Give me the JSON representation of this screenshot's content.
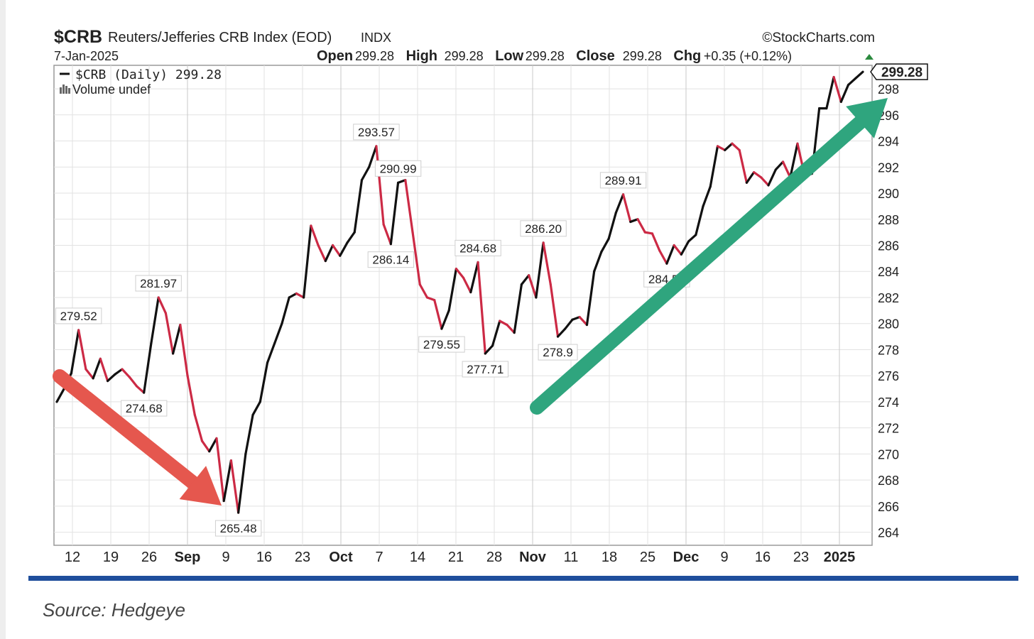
{
  "header": {
    "symbol": "$CRB",
    "name": "Reuters/Jefferies CRB Index (EOD)",
    "exchange": "INDX",
    "credit": "©StockCharts.com",
    "date": "7-Jan-2025",
    "ohlc": [
      {
        "label": "Open",
        "value": "299.28"
      },
      {
        "label": "High",
        "value": "299.28"
      },
      {
        "label": "Low",
        "value": "299.28"
      },
      {
        "label": "Close",
        "value": "299.28"
      },
      {
        "label": "Chg",
        "value": "+0.35 (+0.12%)"
      }
    ],
    "legend_series": "$CRB (Daily) 299.28",
    "legend_volume": "Volume undef"
  },
  "chart_data": {
    "type": "line",
    "x_tick_labels": [
      {
        "label": "12",
        "bold": false
      },
      {
        "label": "19",
        "bold": false
      },
      {
        "label": "26",
        "bold": false
      },
      {
        "label": "Sep",
        "bold": true
      },
      {
        "label": "9",
        "bold": false
      },
      {
        "label": "16",
        "bold": false
      },
      {
        "label": "23",
        "bold": false
      },
      {
        "label": "Oct",
        "bold": true
      },
      {
        "label": "7",
        "bold": false
      },
      {
        "label": "14",
        "bold": false
      },
      {
        "label": "21",
        "bold": false
      },
      {
        "label": "28",
        "bold": false
      },
      {
        "label": "Nov",
        "bold": true
      },
      {
        "label": "11",
        "bold": false
      },
      {
        "label": "18",
        "bold": false
      },
      {
        "label": "25",
        "bold": false
      },
      {
        "label": "Dec",
        "bold": true
      },
      {
        "label": "9",
        "bold": false
      },
      {
        "label": "16",
        "bold": false
      },
      {
        "label": "23",
        "bold": false
      },
      {
        "label": "2025",
        "bold": true
      }
    ],
    "y_ticks": [
      264,
      266,
      268,
      270,
      272,
      274,
      276,
      278,
      280,
      282,
      284,
      286,
      288,
      290,
      292,
      294,
      296,
      298
    ],
    "ylim": [
      263,
      299.8
    ],
    "last_value_label": "299.28",
    "series": [
      {
        "values": [
          274.0,
          275.0,
          276.2,
          279.5,
          276.5,
          275.8,
          277.3,
          275.6,
          276.1,
          276.5,
          275.9,
          275.2,
          274.7,
          278.5,
          282.0,
          280.8,
          277.7,
          279.9,
          276.0,
          273.0,
          271.0,
          270.2,
          271.2,
          266.4,
          269.5,
          265.5,
          270.0,
          273.0,
          274.0,
          277.0,
          278.5,
          280.0,
          282.0,
          282.3,
          282.0,
          287.5,
          286.0,
          284.8,
          286.0,
          285.2,
          286.2,
          287.0,
          291.0,
          292.0,
          293.6,
          287.6,
          286.1,
          290.8,
          291.0,
          287.0,
          283.0,
          282.0,
          281.8,
          279.6,
          281.0,
          284.2,
          283.5,
          282.4,
          284.7,
          277.7,
          278.3,
          280.2,
          279.9,
          279.3,
          283.0,
          283.7,
          282.0,
          286.2,
          283.0,
          279.0,
          279.6,
          280.3,
          280.5,
          279.9,
          284.0,
          285.5,
          286.5,
          288.5,
          289.9,
          287.8,
          288.0,
          287.0,
          286.9,
          285.6,
          284.6,
          286.0,
          285.3,
          286.3,
          286.8,
          289.0,
          290.5,
          293.6,
          293.3,
          293.8,
          293.3,
          290.8,
          291.6,
          291.2,
          290.6,
          291.8,
          292.4,
          291.2,
          293.8,
          291.3,
          291.5,
          296.5,
          296.5,
          298.9,
          297.0,
          298.3,
          298.8,
          299.3
        ]
      }
    ],
    "annotations": [
      {
        "index": 3,
        "text": "279.52",
        "pos": "above"
      },
      {
        "index": 12,
        "text": "274.68",
        "pos": "below"
      },
      {
        "index": 14,
        "text": "281.97",
        "pos": "above"
      },
      {
        "index": 25,
        "text": "265.48",
        "pos": "below"
      },
      {
        "index": 44,
        "text": "293.57",
        "pos": "above"
      },
      {
        "index": 46,
        "text": "286.14",
        "pos": "below"
      },
      {
        "index": 47,
        "text": "290.99",
        "pos": "above"
      },
      {
        "index": 53,
        "text": "279.55",
        "pos": "below"
      },
      {
        "index": 58,
        "text": "284.68",
        "pos": "above"
      },
      {
        "index": 59,
        "text": "277.71",
        "pos": "below"
      },
      {
        "index": 67,
        "text": "286.20",
        "pos": "above"
      },
      {
        "index": 69,
        "text": "278.9",
        "pos": "below"
      },
      {
        "index": 78,
        "text": "289.91",
        "pos": "above"
      },
      {
        "index": 84,
        "text": "284.55",
        "pos": "below"
      }
    ],
    "decline_color": "#cc2a45",
    "advance_color": "#111111",
    "down_arrow_color": "#e5574e",
    "up_arrow_color": "#2fa57e"
  },
  "source": "Source: Hedgeye"
}
